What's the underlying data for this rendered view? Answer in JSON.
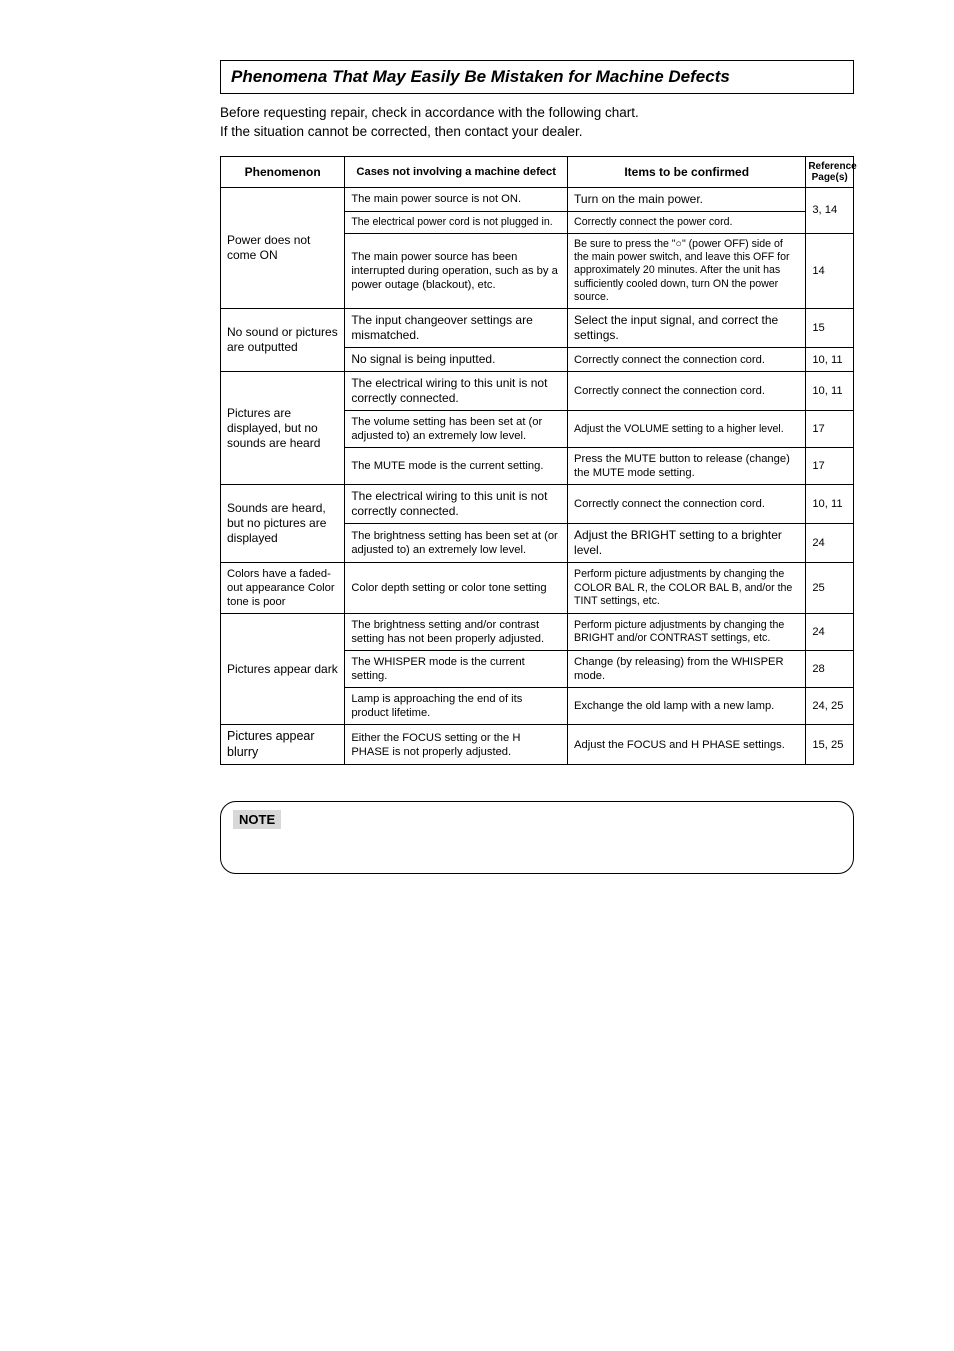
{
  "header": {
    "title": "Phenomena That May Easily Be Mistaken for Machine Defects"
  },
  "intro": {
    "line1": "Before requesting repair, check in accordance with the following chart.",
    "line2": "If the situation cannot be corrected, then contact your dealer."
  },
  "table": {
    "head": {
      "phen": "Phenomenon",
      "cause": "Cases not involving a machine defect",
      "conf": "Items to be confirmed",
      "ref": "Reference Page(s)"
    },
    "rows": [
      {
        "phen": "Power does not come ON",
        "phen_fs": 12,
        "phen_rowspan": 3,
        "cause": "The main power source is not ON.",
        "cause_fs": 11.2,
        "conf": "Turn on the main power.",
        "conf_fs": 12,
        "page": "3, 14",
        "page_rowspan": 2
      },
      {
        "cause": "The electrical power cord is not plugged in.",
        "cause_fs": 10.6,
        "conf": "Correctly connect the power cord.",
        "conf_fs": 10.6
      },
      {
        "cause": "The main power source has been interrupted during operation, such as by a power outage (blackout), etc.",
        "cause_fs": 11.2,
        "conf": "Be sure to press the \"○\" (power OFF) side of the main power switch, and leave this OFF for approximately 20 minutes. After the unit has sufficiently cooled down, turn ON the power source.",
        "conf_fs": 10.6,
        "page": "14"
      },
      {
        "phen": "No sound or pictures are outputted",
        "phen_fs": 12,
        "phen_rowspan": 2,
        "cause": "The input changeover settings are mismatched.",
        "cause_fs": 12,
        "conf": "Select the input signal, and correct the settings.",
        "conf_fs": 12,
        "page": "15"
      },
      {
        "cause": "No signal is being inputted.",
        "cause_fs": 12,
        "conf": "Correctly connect the connection cord.",
        "conf_fs": 11.2,
        "page": "10, 11"
      },
      {
        "phen": "Pictures are displayed, but no sounds are heard",
        "phen_fs": 12,
        "phen_rowspan": 3,
        "cause": "The electrical wiring to this unit is not correctly connected.",
        "cause_fs": 12,
        "conf": "Correctly connect the connection cord.",
        "conf_fs": 11.2,
        "page": "10, 11"
      },
      {
        "cause": "The volume setting has been set at (or adjusted to) an extremely low level.",
        "cause_fs": 11.2,
        "conf": "Adjust the VOLUME setting to a higher level.",
        "conf_fs": 10.6,
        "page": "17"
      },
      {
        "cause": "The MUTE mode is the current setting.",
        "cause_fs": 11.2,
        "conf": "Press the MUTE button to release (change) the MUTE mode setting.",
        "conf_fs": 11.2,
        "page": "17"
      },
      {
        "phen": "Sounds are heard, but no pictures are displayed",
        "phen_fs": 12,
        "phen_rowspan": 2,
        "cause": "The electrical wiring to this unit is not correctly connected.",
        "cause_fs": 12,
        "conf": "Correctly connect the connection cord.",
        "conf_fs": 11.2,
        "page": "10, 11"
      },
      {
        "cause": "The brightness setting has been set at (or adjusted to) an extremely low level.",
        "cause_fs": 11.2,
        "conf": "Adjust the BRIGHT setting to a brighter level.",
        "conf_fs": 12,
        "page": "24"
      },
      {
        "phen": "Colors have a faded-out appearance Color tone is poor",
        "phen_fs": 11.2,
        "cause": "Color depth setting or color tone setting",
        "cause_fs": 11.2,
        "conf": "Perform picture adjustments by changing the COLOR BAL R, the COLOR BAL B, and/or the TINT settings, etc.",
        "conf_fs": 10.6,
        "page": "25"
      },
      {
        "phen": "Pictures appear dark",
        "phen_fs": 12,
        "phen_rowspan": 3,
        "cause": "The brightness setting and/or contrast setting has not been properly adjusted.",
        "cause_fs": 11.2,
        "conf": "Perform picture adjustments by changing the BRIGHT and/or CONTRAST settings, etc.",
        "conf_fs": 10.6,
        "page": "24"
      },
      {
        "cause": "The WHISPER mode is the current setting.",
        "cause_fs": 11.2,
        "conf": "Change (by releasing) from the WHISPER mode.",
        "conf_fs": 11.2,
        "page": "28"
      },
      {
        "cause": "Lamp is approaching the end of its product lifetime.",
        "cause_fs": 11.2,
        "conf": "Exchange the old lamp with a new lamp.",
        "conf_fs": 11.2,
        "page": "24, 25"
      },
      {
        "phen": "Pictures appear blurry",
        "phen_fs": 12.5,
        "cause": "Either the FOCUS setting or the H PHASE is not properly adjusted.",
        "cause_fs": 11.2,
        "conf": "Adjust the FOCUS and H PHASE settings.",
        "conf_fs": 11.2,
        "page": "15, 25"
      }
    ]
  },
  "note": {
    "label": "NOTE"
  }
}
